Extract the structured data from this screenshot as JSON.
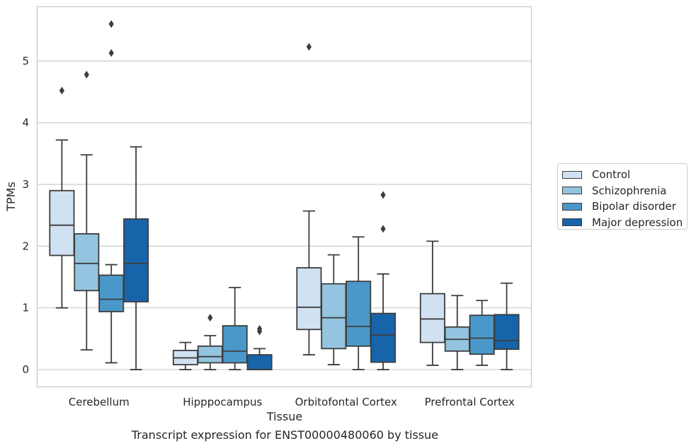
{
  "chart_data": {
    "type": "box",
    "title": "",
    "caption": "Transcript expression for ENST00000480060 by tissue",
    "xlabel": "Tissue",
    "ylabel": "TPMs",
    "ylim": [
      -0.28,
      5.88
    ],
    "yticks": [
      "0",
      "1",
      "2",
      "3",
      "4",
      "5"
    ],
    "grid": "horizontal",
    "legend_position": "right",
    "categories": [
      "Cerebellum",
      "Hipppocampus",
      "Orbitofontal Cortex",
      "Prefrontal Cortex"
    ],
    "series": [
      {
        "name": "Control",
        "color": "#d0e1f2",
        "boxes": [
          {
            "whisker_low": 1.0,
            "q1": 1.85,
            "median": 2.34,
            "q3": 2.9,
            "whisker_high": 3.72,
            "outliers": [
              4.52
            ]
          },
          {
            "whisker_low": 0.0,
            "q1": 0.08,
            "median": 0.19,
            "q3": 0.31,
            "whisker_high": 0.44,
            "outliers": []
          },
          {
            "whisker_low": 0.24,
            "q1": 0.65,
            "median": 1.01,
            "q3": 1.65,
            "whisker_high": 2.57,
            "outliers": [
              5.23
            ]
          },
          {
            "whisker_low": 0.07,
            "q1": 0.44,
            "median": 0.82,
            "q3": 1.23,
            "whisker_high": 2.08,
            "outliers": []
          }
        ]
      },
      {
        "name": "Schizophrenia",
        "color": "#94c4df",
        "boxes": [
          {
            "whisker_low": 0.32,
            "q1": 1.28,
            "median": 1.72,
            "q3": 2.2,
            "whisker_high": 3.48,
            "outliers": [
              4.78
            ]
          },
          {
            "whisker_low": 0.0,
            "q1": 0.11,
            "median": 0.21,
            "q3": 0.38,
            "whisker_high": 0.55,
            "outliers": [
              0.84
            ]
          },
          {
            "whisker_low": 0.08,
            "q1": 0.34,
            "median": 0.84,
            "q3": 1.39,
            "whisker_high": 1.86,
            "outliers": []
          },
          {
            "whisker_low": 0.0,
            "q1": 0.3,
            "median": 0.49,
            "q3": 0.69,
            "whisker_high": 1.2,
            "outliers": []
          }
        ]
      },
      {
        "name": "Bipolar disorder",
        "color": "#4a98c9",
        "boxes": [
          {
            "whisker_low": 0.11,
            "q1": 0.94,
            "median": 1.14,
            "q3": 1.53,
            "whisker_high": 1.7,
            "outliers": [
              5.13,
              5.6
            ]
          },
          {
            "whisker_low": 0.0,
            "q1": 0.11,
            "median": 0.3,
            "q3": 0.71,
            "whisker_high": 1.33,
            "outliers": []
          },
          {
            "whisker_low": 0.0,
            "q1": 0.38,
            "median": 0.7,
            "q3": 1.43,
            "whisker_high": 2.15,
            "outliers": []
          },
          {
            "whisker_low": 0.07,
            "q1": 0.25,
            "median": 0.51,
            "q3": 0.88,
            "whisker_high": 1.12,
            "outliers": []
          }
        ]
      },
      {
        "name": "Major depression",
        "color": "#1764ab",
        "boxes": [
          {
            "whisker_low": 0.0,
            "q1": 1.1,
            "median": 1.72,
            "q3": 2.44,
            "whisker_high": 3.61,
            "outliers": []
          },
          {
            "whisker_low": 0.0,
            "q1": 0.0,
            "median": 0.0,
            "q3": 0.24,
            "whisker_high": 0.34,
            "outliers": [
              0.62,
              0.66
            ]
          },
          {
            "whisker_low": 0.0,
            "q1": 0.12,
            "median": 0.56,
            "q3": 0.91,
            "whisker_high": 1.55,
            "outliers": [
              2.28,
              2.83
            ]
          },
          {
            "whisker_low": 0.0,
            "q1": 0.33,
            "median": 0.47,
            "q3": 0.89,
            "whisker_high": 1.4,
            "outliers": []
          }
        ]
      }
    ]
  }
}
